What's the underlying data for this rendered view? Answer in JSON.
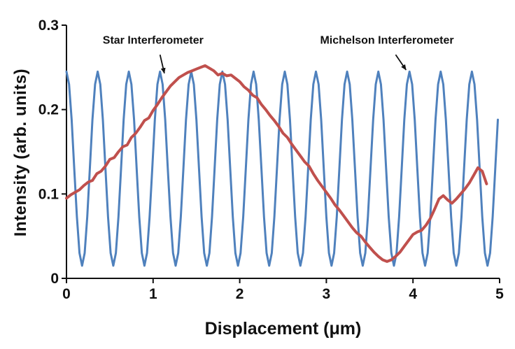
{
  "figure": {
    "background": "#ffffff"
  },
  "chart_data": {
    "type": "line",
    "title": "",
    "xlabel": "Displacement (μm)",
    "ylabel": "Intensity (arb. units)",
    "xlim": [
      0,
      5
    ],
    "ylim": [
      0,
      0.3
    ],
    "grid": false,
    "legend": "none (labels annotated on plot with arrows)",
    "x_ticks": [
      0,
      1,
      2,
      3,
      4,
      5
    ],
    "x_tick_labels": [
      "0",
      "1",
      "2",
      "3",
      "4",
      "5"
    ],
    "y_ticks": [
      0,
      0.1,
      0.2,
      0.3
    ],
    "y_tick_labels": [
      "0",
      "0.1",
      "0.2",
      "0.3"
    ],
    "series": [
      {
        "name": "Michelson Interferometer",
        "color": "#4f81bd",
        "stroke_width": 3,
        "x_start": 0,
        "x_step": 0.03,
        "period_um": 0.36,
        "y": [
          0.245,
          0.23,
          0.188,
          0.13,
          0.073,
          0.03,
          0.015,
          0.03,
          0.073,
          0.13,
          0.188,
          0.23,
          0.245,
          0.23,
          0.188,
          0.13,
          0.073,
          0.03,
          0.015,
          0.03,
          0.073,
          0.13,
          0.188,
          0.23,
          0.245,
          0.23,
          0.188,
          0.13,
          0.073,
          0.03,
          0.015,
          0.03,
          0.073,
          0.13,
          0.188,
          0.23,
          0.245,
          0.23,
          0.188,
          0.13,
          0.073,
          0.03,
          0.015,
          0.03,
          0.073,
          0.13,
          0.188,
          0.23,
          0.245,
          0.23,
          0.188,
          0.13,
          0.073,
          0.03,
          0.015,
          0.03,
          0.073,
          0.13,
          0.188,
          0.23,
          0.245,
          0.23,
          0.188,
          0.13,
          0.073,
          0.03,
          0.015,
          0.03,
          0.073,
          0.13,
          0.188,
          0.23,
          0.245,
          0.23,
          0.188,
          0.13,
          0.073,
          0.03,
          0.015,
          0.03,
          0.073,
          0.13,
          0.188,
          0.23,
          0.245,
          0.23,
          0.188,
          0.13,
          0.073,
          0.03,
          0.015,
          0.03,
          0.073,
          0.13,
          0.188,
          0.23,
          0.245,
          0.23,
          0.188,
          0.13,
          0.073,
          0.03,
          0.015,
          0.03,
          0.073,
          0.13,
          0.188,
          0.23,
          0.245,
          0.23,
          0.188,
          0.13,
          0.073,
          0.03,
          0.015,
          0.03,
          0.073,
          0.13,
          0.188,
          0.23,
          0.245,
          0.23,
          0.188,
          0.13,
          0.073,
          0.03,
          0.015,
          0.03,
          0.073,
          0.13,
          0.188,
          0.23,
          0.245,
          0.23,
          0.188,
          0.13,
          0.073,
          0.03,
          0.015,
          0.03,
          0.073,
          0.13,
          0.188,
          0.23,
          0.245,
          0.23,
          0.188,
          0.13,
          0.073,
          0.03,
          0.015,
          0.03,
          0.073,
          0.13,
          0.188,
          0.23,
          0.245,
          0.23,
          0.188,
          0.13,
          0.073,
          0.03,
          0.015,
          0.03,
          0.073,
          0.13,
          0.188,
          0.23
        ]
      },
      {
        "name": "Star Interferometer",
        "color": "#c0504d",
        "stroke_width": 4,
        "x_start": 0,
        "x_step": 0.05,
        "y": [
          0.095,
          0.099,
          0.102,
          0.105,
          0.11,
          0.114,
          0.116,
          0.124,
          0.127,
          0.133,
          0.141,
          0.143,
          0.15,
          0.156,
          0.158,
          0.167,
          0.172,
          0.179,
          0.187,
          0.19,
          0.199,
          0.206,
          0.214,
          0.221,
          0.228,
          0.233,
          0.238,
          0.241,
          0.244,
          0.246,
          0.248,
          0.25,
          0.252,
          0.249,
          0.246,
          0.241,
          0.243,
          0.24,
          0.241,
          0.237,
          0.233,
          0.227,
          0.223,
          0.217,
          0.214,
          0.206,
          0.2,
          0.193,
          0.187,
          0.18,
          0.172,
          0.167,
          0.159,
          0.152,
          0.145,
          0.138,
          0.133,
          0.124,
          0.116,
          0.109,
          0.102,
          0.095,
          0.087,
          0.081,
          0.074,
          0.067,
          0.06,
          0.054,
          0.05,
          0.043,
          0.037,
          0.031,
          0.026,
          0.022,
          0.02,
          0.022,
          0.026,
          0.031,
          0.038,
          0.045,
          0.052,
          0.055,
          0.057,
          0.063,
          0.071,
          0.082,
          0.094,
          0.098,
          0.093,
          0.089,
          0.094,
          0.1,
          0.106,
          0.113,
          0.122,
          0.131,
          0.127,
          0.112
        ]
      }
    ],
    "annotations": [
      {
        "label": "Star Interferometer",
        "text_x": 1.0,
        "text_y": 0.278,
        "tail_x": 1.08,
        "tail_y": 0.265,
        "tip_x": 1.13,
        "tip_y": 0.243
      },
      {
        "label": "Michelson Interferometer",
        "text_x": 3.7,
        "text_y": 0.278,
        "tail_x": 3.8,
        "tail_y": 0.265,
        "tip_x": 3.92,
        "tip_y": 0.247
      }
    ]
  }
}
